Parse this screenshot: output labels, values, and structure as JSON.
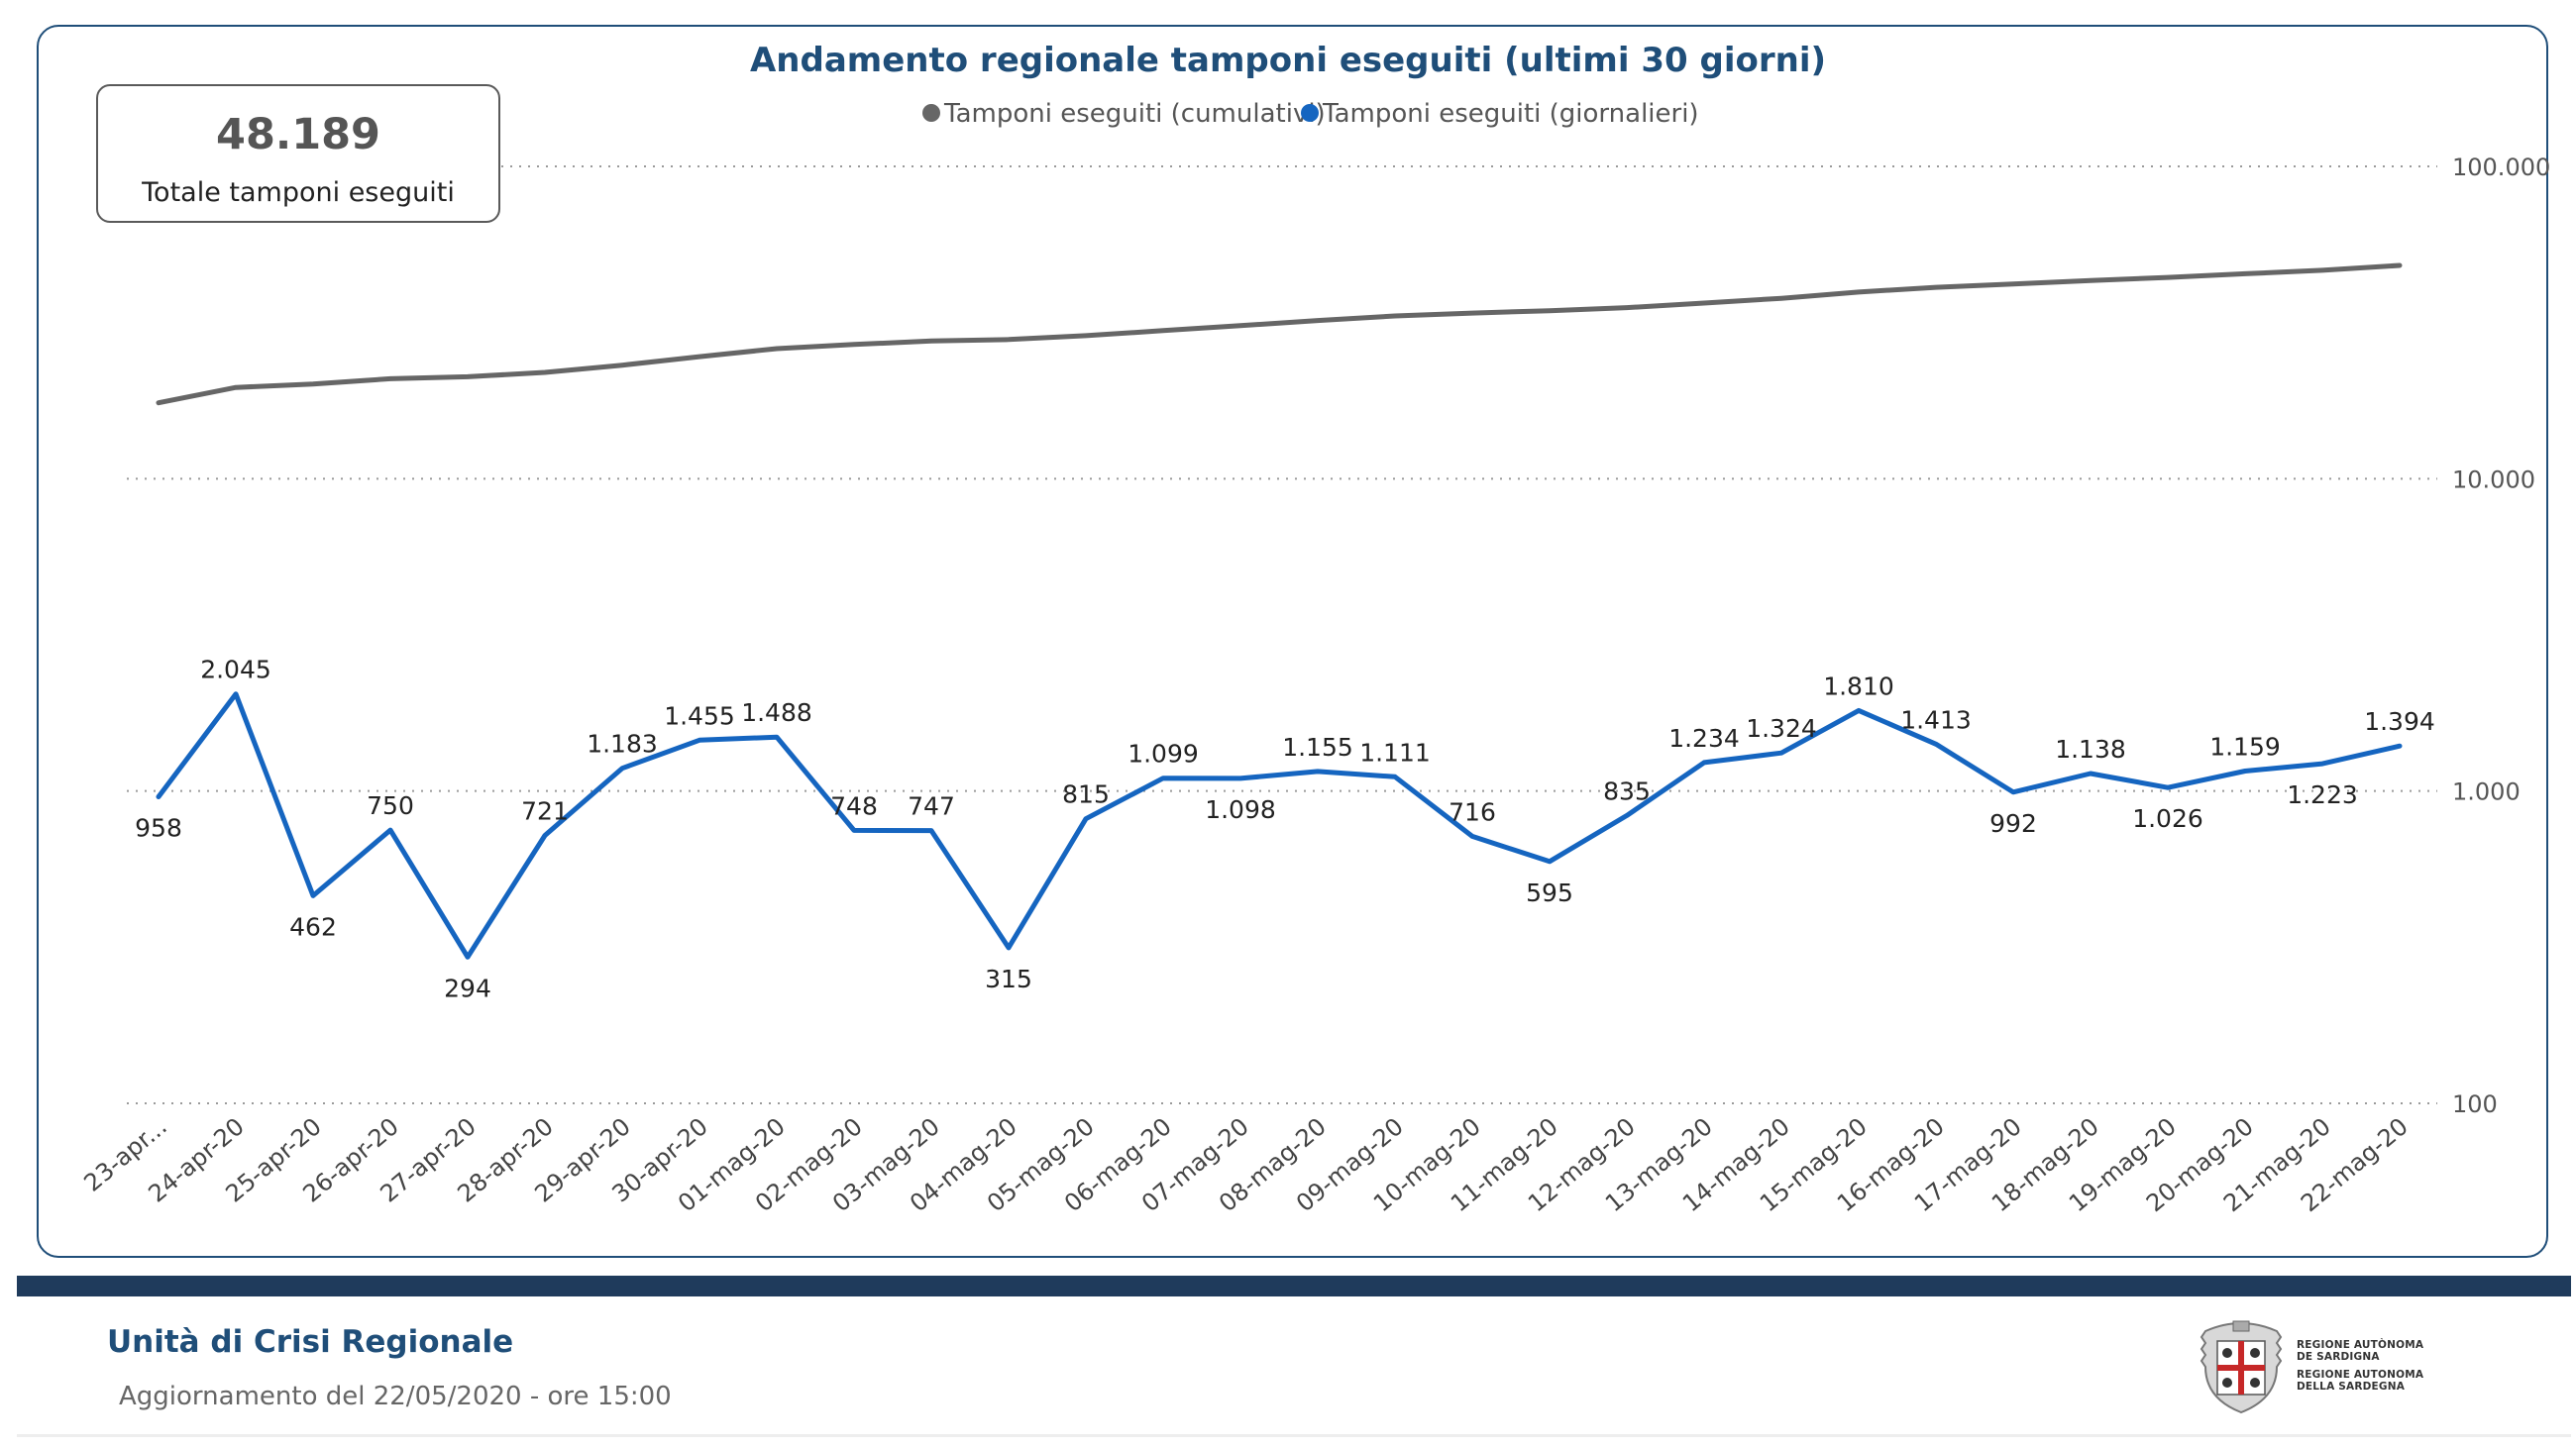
{
  "chart_data": {
    "type": "line",
    "title": "Andamento regionale tamponi eseguiti (ultimi 30 giorni)",
    "y_scale": "log",
    "ylim": [
      100,
      100000
    ],
    "yticks": [
      100,
      1000,
      10000,
      100000
    ],
    "ytick_labels": [
      "100",
      "1.000",
      "10.000",
      "100.000"
    ],
    "categories": [
      "23-apr...",
      "24-apr-20",
      "25-apr-20",
      "26-apr-20",
      "27-apr-20",
      "28-apr-20",
      "29-apr-20",
      "30-apr-20",
      "01-mag-20",
      "02-mag-20",
      "03-mag-20",
      "04-mag-20",
      "05-mag-20",
      "06-mag-20",
      "07-mag-20",
      "08-mag-20",
      "09-mag-20",
      "10-mag-20",
      "11-mag-20",
      "12-mag-20",
      "13-mag-20",
      "14-mag-20",
      "15-mag-20",
      "16-mag-20",
      "17-mag-20",
      "18-mag-20",
      "19-mag-20",
      "20-mag-20",
      "21-mag-20",
      "22-mag-20"
    ],
    "series": [
      {
        "name": "Tamponi eseguiti (cumulativi)",
        "color": "#666666",
        "values": [
          17500,
          19600,
          20100,
          20900,
          21200,
          21900,
          23100,
          24600,
          26100,
          26900,
          27600,
          27900,
          28700,
          29800,
          30900,
          32100,
          33200,
          33900,
          34500,
          35300,
          36500,
          37800,
          39600,
          41000,
          42000,
          43100,
          44100,
          45300,
          46500,
          48189
        ]
      },
      {
        "name": "Tamponi eseguiti (giornalieri)",
        "color": "#1565c0",
        "values": [
          958,
          2045,
          462,
          750,
          294,
          721,
          1183,
          1455,
          1488,
          748,
          747,
          315,
          815,
          1099,
          1098,
          1155,
          1111,
          716,
          595,
          835,
          1234,
          1324,
          1810,
          1413,
          992,
          1138,
          1026,
          1159,
          1223,
          1394
        ],
        "labels": [
          "958",
          "2.045",
          "462",
          "750",
          "294",
          "721",
          "1.183",
          "1.455",
          "1.488",
          "748",
          "747",
          "315",
          "815",
          "1.099",
          "1.098",
          "1.155",
          "1.111",
          "716",
          "595",
          "835",
          "1.234",
          "1.324",
          "1.810",
          "1.413",
          "992",
          "1.138",
          "1.026",
          "1.159",
          "1.223",
          "1.394"
        ],
        "label_pos": [
          "below",
          "above",
          "below",
          "above",
          "below",
          "above",
          "above",
          "above",
          "above",
          "above",
          "above",
          "below",
          "above",
          "above",
          "below",
          "above",
          "above",
          "above",
          "below",
          "above",
          "above",
          "above",
          "above",
          "above",
          "below",
          "above",
          "below",
          "above",
          "below",
          "above"
        ]
      }
    ],
    "legend_position": "top-center",
    "grid": "dotted-horizontal"
  },
  "kpi": {
    "value": "48.189",
    "label": "Totale tamponi eseguiti"
  },
  "footer": {
    "title": "Unità di Crisi Regionale",
    "update": "Aggiornamento del 22/05/2020 - ore 15:00"
  },
  "logo": {
    "line1": "REGIONE AUTÒNOMA",
    "line2": "DE SARDIGNA",
    "line3": "REGIONE AUTONOMA",
    "line4": "DELLA SARDEGNA"
  }
}
